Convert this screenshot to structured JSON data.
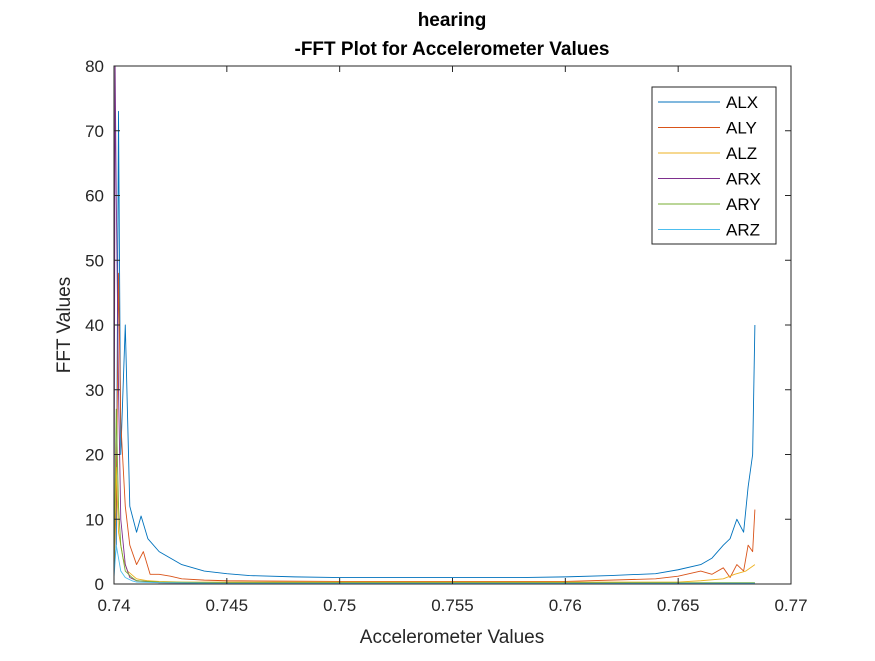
{
  "chart_data": {
    "type": "line",
    "title_lines": [
      "hearing",
      "-FFT Plot for Accelerometer Values"
    ],
    "xlabel": "Accelerometer Values",
    "ylabel": "FFT Values",
    "xlim": [
      0.74,
      0.77
    ],
    "ylim": [
      0,
      80
    ],
    "xticks": [
      0.74,
      0.745,
      0.75,
      0.755,
      0.76,
      0.765,
      0.77
    ],
    "xtick_labels": [
      "0.74",
      "0.745",
      "0.75",
      "0.755",
      "0.76",
      "0.765",
      "0.77"
    ],
    "yticks": [
      0,
      10,
      20,
      30,
      40,
      50,
      60,
      70,
      80
    ],
    "ytick_labels": [
      "0",
      "10",
      "20",
      "30",
      "40",
      "50",
      "60",
      "70",
      "80"
    ],
    "grid": false,
    "legend_position": "top-right",
    "series": [
      {
        "name": "ALX",
        "color": "#0072BD",
        "x": [
          0.74,
          0.7401,
          0.7402,
          0.7403,
          0.7405,
          0.7407,
          0.741,
          0.7412,
          0.7415,
          0.742,
          0.7425,
          0.743,
          0.7435,
          0.744,
          0.745,
          0.746,
          0.748,
          0.75,
          0.752,
          0.755,
          0.758,
          0.76,
          0.762,
          0.764,
          0.765,
          0.766,
          0.7665,
          0.767,
          0.7673,
          0.7676,
          0.7679,
          0.7681,
          0.7683,
          0.7684
        ],
        "y": [
          2,
          6,
          73,
          20,
          40,
          12,
          8,
          10.5,
          7,
          5,
          4,
          3,
          2.5,
          2,
          1.6,
          1.3,
          1.1,
          1.0,
          1.0,
          1.0,
          1.0,
          1.1,
          1.3,
          1.6,
          2.2,
          3,
          4,
          6,
          7,
          10,
          8,
          15,
          20,
          40
        ]
      },
      {
        "name": "ALY",
        "color": "#D95319",
        "x": [
          0.74,
          0.7401,
          0.7402,
          0.7403,
          0.7405,
          0.7407,
          0.741,
          0.7413,
          0.7416,
          0.742,
          0.7425,
          0.743,
          0.744,
          0.745,
          0.75,
          0.755,
          0.76,
          0.764,
          0.765,
          0.766,
          0.7665,
          0.767,
          0.7673,
          0.7676,
          0.7679,
          0.7681,
          0.7683,
          0.7684
        ],
        "y": [
          3,
          12,
          48,
          25,
          12,
          6,
          3,
          5,
          1.5,
          1.5,
          1.2,
          0.8,
          0.6,
          0.5,
          0.4,
          0.4,
          0.4,
          0.8,
          1.2,
          2,
          1.5,
          2.5,
          1,
          3,
          2,
          6,
          5,
          11.5
        ]
      },
      {
        "name": "ALZ",
        "color": "#EDB120",
        "x": [
          0.74,
          0.7401,
          0.7402,
          0.7404,
          0.7406,
          0.741,
          0.7415,
          0.742,
          0.743,
          0.744,
          0.745,
          0.75,
          0.755,
          0.76,
          0.765,
          0.766,
          0.767,
          0.7675,
          0.768,
          0.7684
        ],
        "y": [
          2,
          18,
          8,
          4,
          2,
          0.8,
          0.5,
          0.4,
          0.3,
          0.3,
          0.3,
          0.3,
          0.3,
          0.3,
          0.3,
          0.5,
          0.8,
          1.5,
          2,
          3
        ]
      },
      {
        "name": "ARX",
        "color": "#7E2F8E",
        "x": [
          0.74,
          0.74005,
          0.7401,
          0.7402,
          0.7403,
          0.7405,
          0.7407,
          0.741,
          0.742,
          0.745,
          0.75,
          0.755,
          0.76,
          0.765,
          0.7684
        ],
        "y": [
          1,
          80,
          60,
          30,
          10,
          3,
          1,
          0.5,
          0.2,
          0.1,
          0.1,
          0.1,
          0.1,
          0.1,
          0.1
        ]
      },
      {
        "name": "ARY",
        "color": "#77AC30",
        "x": [
          0.74,
          0.7401,
          0.7402,
          0.7403,
          0.7405,
          0.7408,
          0.741,
          0.742,
          0.745,
          0.75,
          0.755,
          0.76,
          0.765,
          0.7684
        ],
        "y": [
          2,
          27,
          12,
          6,
          2,
          1,
          0.5,
          0.3,
          0.2,
          0.2,
          0.2,
          0.2,
          0.2,
          0.2
        ]
      },
      {
        "name": "ARZ",
        "color": "#4DBEEE",
        "x": [
          0.74,
          0.7401,
          0.7402,
          0.7403,
          0.7405,
          0.7408,
          0.741,
          0.742,
          0.745,
          0.75,
          0.755,
          0.76,
          0.765,
          0.7684
        ],
        "y": [
          1,
          6,
          4,
          2,
          1,
          0.5,
          0.3,
          0.2,
          0.1,
          0.1,
          0.1,
          0.1,
          0.1,
          0.1
        ]
      }
    ]
  }
}
